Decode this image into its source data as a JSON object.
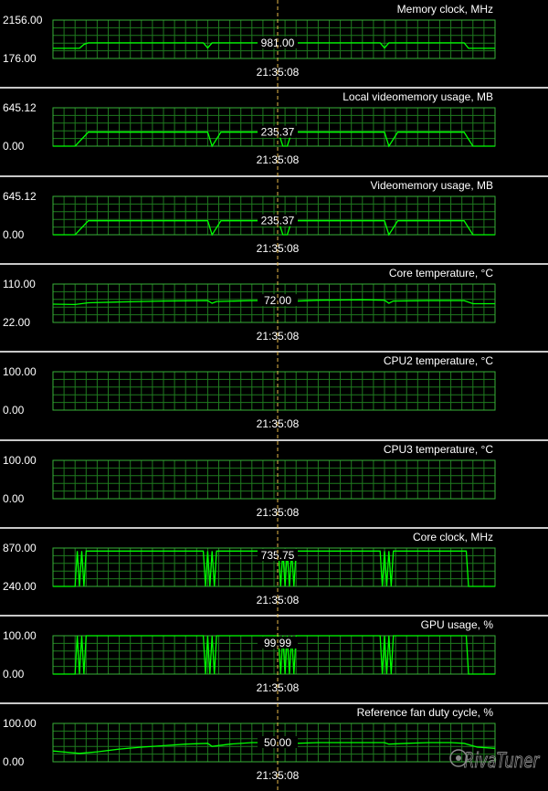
{
  "app": {
    "watermark": "RivaTuner"
  },
  "cursor_time": "21:35:08",
  "colors": {
    "grid": "#1f7a1f",
    "trace": "#00ff00",
    "cursor": "#e6b84a",
    "separator": "#c8c8c8"
  },
  "chart_data": [
    {
      "type": "line",
      "title": "Memory clock, MHz",
      "ylim": [
        176.0,
        2156.0
      ],
      "ytick_labels": [
        "2156.00",
        "176.00"
      ],
      "current_value": "981.00",
      "x_label": "21:35:08",
      "series": [
        {
          "x": [
            0,
            0.06,
            0.07,
            0.08,
            0.34,
            0.35,
            0.36,
            0.74,
            0.75,
            0.76,
            0.93,
            0.94,
            1
          ],
          "values": [
            700,
            700,
            900,
            980,
            980,
            720,
            980,
            980,
            720,
            980,
            980,
            700,
            700
          ]
        }
      ]
    },
    {
      "type": "line",
      "title": "Local videomemory usage, MB",
      "ylim": [
        0.0,
        645.12
      ],
      "ytick_labels": [
        "645.12",
        "0.00"
      ],
      "current_value": "235.37",
      "x_label": "21:35:08",
      "series": [
        {
          "x": [
            0,
            0.05,
            0.08,
            0.35,
            0.36,
            0.38,
            0.51,
            0.52,
            0.53,
            0.54,
            0.75,
            0.76,
            0.78,
            0.93,
            0.95,
            1
          ],
          "values": [
            0,
            0,
            235,
            235,
            0,
            235,
            235,
            0,
            0,
            235,
            235,
            0,
            235,
            235,
            0,
            0
          ]
        }
      ]
    },
    {
      "type": "line",
      "title": "Videomemory usage, MB",
      "ylim": [
        0.0,
        645.12
      ],
      "ytick_labels": [
        "645.12",
        "0.00"
      ],
      "current_value": "235.37",
      "x_label": "21:35:08",
      "series": [
        {
          "x": [
            0,
            0.05,
            0.08,
            0.35,
            0.36,
            0.38,
            0.51,
            0.52,
            0.53,
            0.54,
            0.75,
            0.76,
            0.78,
            0.93,
            0.95,
            1
          ],
          "values": [
            0,
            0,
            235,
            235,
            0,
            235,
            235,
            0,
            0,
            235,
            235,
            0,
            235,
            235,
            0,
            0
          ]
        }
      ]
    },
    {
      "type": "line",
      "title": "Core temperature, °C",
      "ylim": [
        22.0,
        110.0
      ],
      "ytick_labels": [
        "110.00",
        "22.00"
      ],
      "current_value": "72.00",
      "x_label": "21:35:08",
      "series": [
        {
          "x": [
            0,
            0.05,
            0.08,
            0.15,
            0.25,
            0.35,
            0.36,
            0.37,
            0.45,
            0.51,
            0.52,
            0.53,
            0.6,
            0.7,
            0.75,
            0.76,
            0.77,
            0.85,
            0.93,
            0.95,
            1
          ],
          "values": [
            64,
            63,
            67,
            69,
            71,
            72,
            66,
            70,
            72,
            72,
            65,
            70,
            73,
            74,
            73,
            66,
            71,
            72,
            72,
            65,
            65
          ]
        }
      ]
    },
    {
      "type": "line",
      "title": "CPU2 temperature, °C",
      "ylim": [
        0.0,
        100.0
      ],
      "ytick_labels": [
        "100.00",
        "0.00"
      ],
      "current_value": "",
      "x_label": "21:35:08",
      "series": []
    },
    {
      "type": "line",
      "title": "CPU3 temperature, °C",
      "ylim": [
        0.0,
        100.0
      ],
      "ytick_labels": [
        "100.00",
        "0.00"
      ],
      "current_value": "",
      "x_label": "21:35:08",
      "series": []
    },
    {
      "type": "line",
      "title": "Core clock, MHz",
      "ylim": [
        240.0,
        870.0
      ],
      "ytick_labels": [
        "870.00",
        "240.00"
      ],
      "current_value": "735.75",
      "x_label": "21:35:08",
      "series": [
        {
          "x": [
            0,
            0.05,
            0.055,
            0.06,
            0.065,
            0.07,
            0.075,
            0.08,
            0.34,
            0.345,
            0.35,
            0.355,
            0.36,
            0.365,
            0.37,
            0.51,
            0.515,
            0.52,
            0.525,
            0.53,
            0.535,
            0.54,
            0.545,
            0.55,
            0.74,
            0.745,
            0.75,
            0.755,
            0.76,
            0.765,
            0.77,
            0.935,
            0.94,
            1
          ],
          "values": [
            240,
            240,
            820,
            240,
            820,
            240,
            820,
            820,
            820,
            240,
            820,
            240,
            820,
            240,
            820,
            820,
            240,
            820,
            240,
            820,
            240,
            820,
            240,
            820,
            820,
            240,
            820,
            240,
            820,
            240,
            820,
            820,
            240,
            240
          ]
        }
      ]
    },
    {
      "type": "line",
      "title": "GPU usage, %",
      "ylim": [
        0.0,
        100.0
      ],
      "ytick_labels": [
        "100.00",
        "0.00"
      ],
      "current_value": "99.99",
      "x_label": "21:35:08",
      "series": [
        {
          "x": [
            0,
            0.05,
            0.055,
            0.06,
            0.065,
            0.07,
            0.075,
            0.08,
            0.34,
            0.345,
            0.35,
            0.355,
            0.36,
            0.365,
            0.37,
            0.51,
            0.515,
            0.52,
            0.525,
            0.53,
            0.535,
            0.54,
            0.545,
            0.55,
            0.74,
            0.745,
            0.75,
            0.755,
            0.76,
            0.765,
            0.77,
            0.935,
            0.94,
            1
          ],
          "values": [
            0,
            0,
            100,
            0,
            100,
            0,
            100,
            100,
            100,
            0,
            100,
            0,
            100,
            0,
            100,
            100,
            0,
            100,
            0,
            100,
            0,
            100,
            0,
            100,
            100,
            0,
            100,
            0,
            100,
            0,
            100,
            100,
            0,
            0
          ]
        }
      ]
    },
    {
      "type": "line",
      "title": "Reference fan duty cycle, %",
      "ylim": [
        0.0,
        100.0
      ],
      "ytick_labels": [
        "100.00",
        "0.00"
      ],
      "current_value": "50.00",
      "x_label": "21:35:08",
      "series": [
        {
          "x": [
            0,
            0.03,
            0.06,
            0.1,
            0.15,
            0.2,
            0.25,
            0.3,
            0.35,
            0.36,
            0.4,
            0.45,
            0.51,
            0.52,
            0.55,
            0.6,
            0.65,
            0.7,
            0.75,
            0.76,
            0.8,
            0.85,
            0.9,
            0.93,
            0.96,
            1
          ],
          "values": [
            28,
            25,
            22,
            26,
            33,
            38,
            42,
            46,
            48,
            40,
            46,
            50,
            50,
            45,
            48,
            50,
            50,
            50,
            50,
            46,
            48,
            50,
            50,
            48,
            38,
            35
          ]
        }
      ]
    }
  ]
}
